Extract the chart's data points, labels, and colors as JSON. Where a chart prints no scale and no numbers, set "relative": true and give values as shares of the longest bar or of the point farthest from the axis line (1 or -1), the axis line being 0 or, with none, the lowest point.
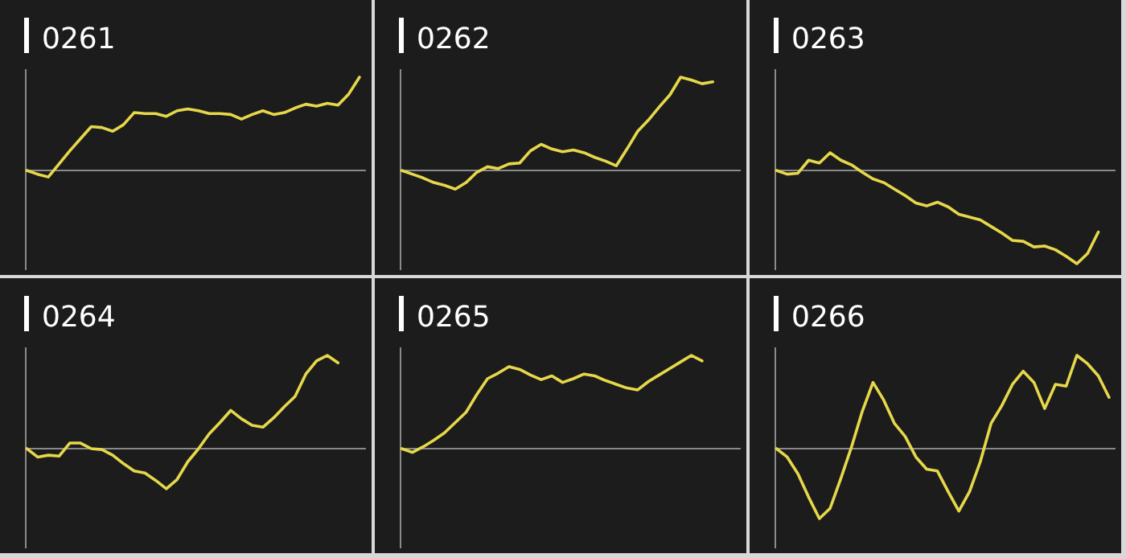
{
  "chart_data": [
    {
      "type": "line",
      "title": "0261",
      "relative": true,
      "categories": [
        null,
        null,
        null,
        null,
        null,
        null,
        null,
        null,
        null,
        null,
        null,
        null,
        null,
        null,
        null,
        null,
        null,
        null,
        null,
        null,
        null,
        null,
        null,
        null,
        null,
        null,
        null,
        null,
        null,
        null,
        null,
        null
      ],
      "series": [
        {
          "color": "#e6d84a",
          "values": [
            0,
            -0.04,
            -0.07,
            0.07,
            0.21,
            0.34,
            0.47,
            0.46,
            0.42,
            0.49,
            0.62,
            0.61,
            0.61,
            0.58,
            0.64,
            0.66,
            0.64,
            0.61,
            0.61,
            0.6,
            0.55,
            0.6,
            0.64,
            0.6,
            0.62,
            0.67,
            0.71,
            0.69,
            0.72,
            0.7,
            0.82,
            1
          ]
        }
      ]
    },
    {
      "type": "line",
      "title": "0262",
      "relative": true,
      "categories": [
        null,
        null,
        null,
        null,
        null,
        null,
        null,
        null,
        null,
        null,
        null,
        null,
        null,
        null,
        null,
        null,
        null,
        null,
        null,
        null,
        null,
        null,
        null,
        null,
        null,
        null,
        null,
        null,
        null,
        null,
        null,
        null
      ],
      "series": [
        {
          "color": "#e6d84a",
          "values": [
            0,
            -0.04,
            -0.08,
            -0.13,
            -0.16,
            -0.2,
            -0.13,
            -0.02,
            0.04,
            0.02,
            0.07,
            0.08,
            0.21,
            0.28,
            0.23,
            0.2,
            0.22,
            0.19,
            0.14,
            0.1,
            0.05,
            0.23,
            0.42,
            0.54,
            0.68,
            0.81,
            1,
            0.97,
            0.93,
            0.95,
            null,
            null
          ]
        }
      ]
    },
    {
      "type": "line",
      "title": "0263",
      "relative": true,
      "categories": [
        null,
        null,
        null,
        null,
        null,
        null,
        null,
        null,
        null,
        null,
        null,
        null,
        null,
        null,
        null,
        null,
        null,
        null,
        null,
        null,
        null,
        null,
        null,
        null,
        null,
        null,
        null,
        null,
        null,
        null,
        null,
        null
      ],
      "series": [
        {
          "color": "#e6d84a",
          "values": [
            0,
            -0.04,
            -0.03,
            0.11,
            0.08,
            0.19,
            0.11,
            0.06,
            -0.02,
            -0.09,
            -0.13,
            -0.2,
            -0.27,
            -0.35,
            -0.38,
            -0.34,
            -0.39,
            -0.47,
            -0.5,
            -0.53,
            -0.6,
            -0.67,
            -0.75,
            -0.76,
            -0.82,
            -0.81,
            -0.85,
            -0.92,
            -1,
            -0.89,
            -0.66,
            null
          ]
        }
      ]
    },
    {
      "type": "line",
      "title": "0264",
      "relative": true,
      "categories": [
        null,
        null,
        null,
        null,
        null,
        null,
        null,
        null,
        null,
        null,
        null,
        null,
        null,
        null,
        null,
        null,
        null,
        null,
        null,
        null,
        null,
        null,
        null,
        null,
        null,
        null,
        null,
        null,
        null,
        null,
        null,
        null
      ],
      "series": [
        {
          "color": "#e6d84a",
          "values": [
            0,
            -0.09,
            -0.07,
            -0.08,
            0.06,
            0.06,
            0,
            -0.01,
            -0.07,
            -0.16,
            -0.24,
            -0.26,
            -0.34,
            -0.43,
            -0.33,
            -0.14,
            0,
            0.16,
            0.28,
            0.41,
            0.32,
            0.25,
            0.23,
            0.33,
            0.45,
            0.56,
            0.8,
            0.94,
            1,
            0.92,
            null,
            null
          ]
        }
      ]
    },
    {
      "type": "line",
      "title": "0265",
      "relative": true,
      "categories": [
        null,
        null,
        null,
        null,
        null,
        null,
        null,
        null,
        null,
        null,
        null,
        null,
        null,
        null,
        null,
        null,
        null,
        null,
        null,
        null,
        null,
        null,
        null,
        null,
        null,
        null,
        null,
        null,
        null,
        null,
        null,
        null
      ],
      "series": [
        {
          "color": "#e6d84a",
          "values": [
            0,
            -0.04,
            0.02,
            0.09,
            0.17,
            0.28,
            0.39,
            0.58,
            0.75,
            0.81,
            0.88,
            0.85,
            0.79,
            0.74,
            0.78,
            0.71,
            0.75,
            0.8,
            0.78,
            0.73,
            0.69,
            0.65,
            0.63,
            0.72,
            0.79,
            0.86,
            0.93,
            1,
            0.94,
            null,
            null,
            null
          ]
        }
      ]
    },
    {
      "type": "line",
      "title": "0266",
      "relative": true,
      "categories": [
        null,
        null,
        null,
        null,
        null,
        null,
        null,
        null,
        null,
        null,
        null,
        null,
        null,
        null,
        null,
        null,
        null,
        null,
        null,
        null,
        null,
        null,
        null,
        null,
        null,
        null,
        null,
        null,
        null,
        null,
        null,
        null
      ],
      "series": [
        {
          "color": "#e6d84a",
          "values": [
            0,
            -0.09,
            -0.27,
            -0.52,
            -0.75,
            -0.64,
            -0.32,
            0.02,
            0.4,
            0.71,
            0.52,
            0.27,
            0.13,
            -0.09,
            -0.22,
            -0.24,
            -0.46,
            -0.67,
            -0.46,
            -0.14,
            0.27,
            0.46,
            0.69,
            0.83,
            0.71,
            0.43,
            0.69,
            0.67,
            1,
            0.91,
            0.78,
            0.55
          ]
        }
      ]
    }
  ]
}
